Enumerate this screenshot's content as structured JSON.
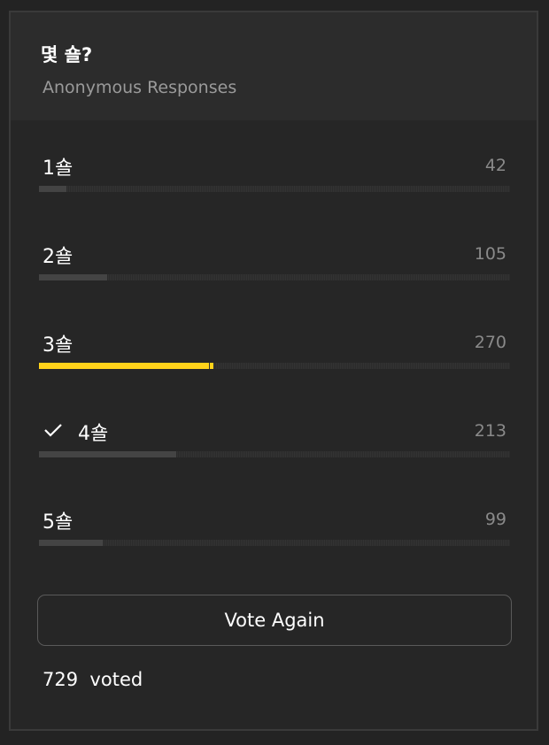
{
  "poll": {
    "title": "몇 숄?",
    "subtitle": "Anonymous Responses",
    "accent_color": "#ffd21a",
    "options": [
      {
        "label": "1숄",
        "count": "42",
        "fraction": 0.0576,
        "selected": false,
        "checked": false
      },
      {
        "label": "2숄",
        "count": "105",
        "fraction": 0.144,
        "selected": false,
        "checked": false
      },
      {
        "label": "3숄",
        "count": "270",
        "fraction": 0.3704,
        "selected": true,
        "checked": false
      },
      {
        "label": "4숄",
        "count": "213",
        "fraction": 0.2922,
        "selected": false,
        "checked": true
      },
      {
        "label": "5숄",
        "count": "99",
        "fraction": 0.1358,
        "selected": false,
        "checked": false
      }
    ],
    "vote_again_label": "Vote Again",
    "total_voted": "729  voted"
  }
}
